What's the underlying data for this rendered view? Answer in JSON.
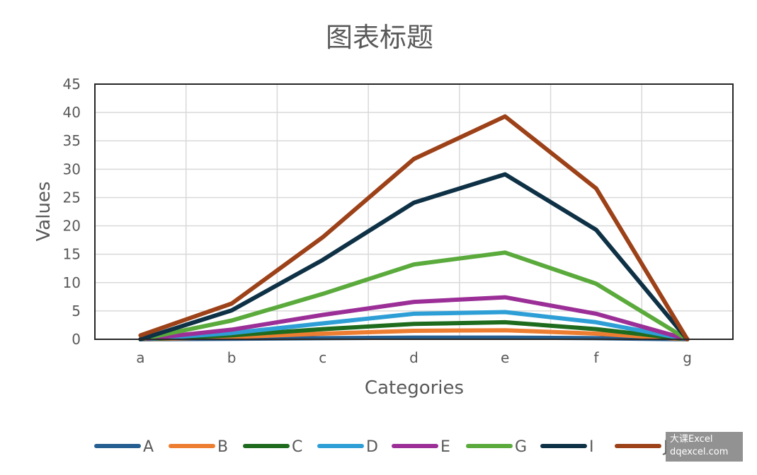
{
  "chart_data": {
    "type": "line",
    "title": "图表标题",
    "xlabel": "Categories",
    "ylabel": "Values",
    "categories": [
      "a",
      "b",
      "c",
      "d",
      "e",
      "f",
      "g"
    ],
    "ylim": [
      0,
      45
    ],
    "yticks": [
      0,
      5,
      10,
      15,
      20,
      25,
      30,
      35,
      40,
      45
    ],
    "grid": true,
    "legend_position": "bottom",
    "series": [
      {
        "name": "A",
        "color": "#255e91",
        "values": [
          0,
          0.1,
          0.2,
          0.3,
          0.3,
          0.2,
          0
        ]
      },
      {
        "name": "B",
        "color": "#ed7d31",
        "values": [
          0,
          0.4,
          1.0,
          1.5,
          1.6,
          1.0,
          0
        ]
      },
      {
        "name": "C",
        "color": "#1e6b1e",
        "values": [
          0,
          0.7,
          1.8,
          2.7,
          3.0,
          1.8,
          0
        ]
      },
      {
        "name": "D",
        "color": "#2e9fd6",
        "values": [
          0,
          1.1,
          2.8,
          4.5,
          4.8,
          3.0,
          0
        ]
      },
      {
        "name": "E",
        "color": "#9b2f97",
        "values": [
          0,
          1.7,
          4.3,
          6.6,
          7.4,
          4.5,
          0
        ]
      },
      {
        "name": "G",
        "color": "#5aaa3c",
        "values": [
          0,
          3.3,
          8.0,
          13.2,
          15.3,
          9.8,
          0
        ]
      },
      {
        "name": "I",
        "color": "#0e3146",
        "values": [
          0,
          5.1,
          14.0,
          24.1,
          29.1,
          19.3,
          0
        ]
      },
      {
        "name": "J",
        "color": "#9c4118",
        "values": [
          0.7,
          6.3,
          18.0,
          31.8,
          39.3,
          26.6,
          0
        ]
      }
    ]
  },
  "watermark": {
    "line1": "大课Excel",
    "line2": "dqexcel.com"
  }
}
